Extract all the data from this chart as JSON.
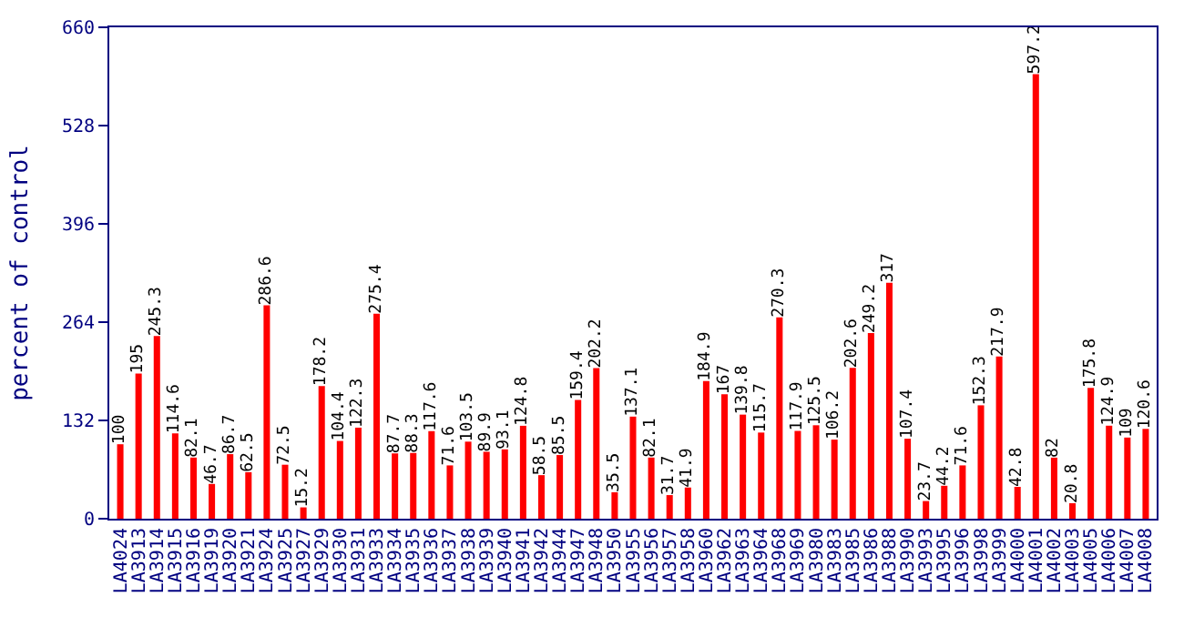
{
  "chart_data": {
    "type": "bar",
    "ylabel": "percent of control",
    "categories": [
      "LA4024",
      "LA3913",
      "LA3914",
      "LA3915",
      "LA3916",
      "LA3919",
      "LA3920",
      "LA3921",
      "LA3924",
      "LA3925",
      "LA3927",
      "LA3929",
      "LA3930",
      "LA3931",
      "LA3933",
      "LA3934",
      "LA3935",
      "LA3936",
      "LA3937",
      "LA3938",
      "LA3939",
      "LA3940",
      "LA3941",
      "LA3942",
      "LA3944",
      "LA3947",
      "LA3948",
      "LA3950",
      "LA3955",
      "LA3956",
      "LA3957",
      "LA3958",
      "LA3960",
      "LA3962",
      "LA3963",
      "LA3964",
      "LA3968",
      "LA3969",
      "LA3980",
      "LA3983",
      "LA3985",
      "LA3986",
      "LA3988",
      "LA3990",
      "LA3993",
      "LA3995",
      "LA3996",
      "LA3998",
      "LA3999",
      "LA4000",
      "LA4001",
      "LA4002",
      "LA4003",
      "LA4005",
      "LA4006",
      "LA4007",
      "LA4008"
    ],
    "values": [
      100,
      195,
      245.3,
      114.6,
      82.1,
      46.7,
      86.7,
      62.5,
      286.6,
      72.5,
      15.2,
      178.2,
      104.4,
      122.3,
      275.4,
      87.7,
      88.3,
      117.6,
      71.6,
      103.5,
      89.9,
      93.1,
      124.8,
      58.5,
      85.5,
      159.4,
      202.2,
      35.5,
      137.1,
      82.1,
      31.7,
      41.9,
      184.9,
      167,
      139.8,
      115.7,
      270.3,
      117.9,
      125.5,
      106.2,
      202.6,
      249.2,
      317,
      107.4,
      23.7,
      44.2,
      71.6,
      152.3,
      217.9,
      42.8,
      597.2,
      82,
      20.8,
      175.8,
      124.9,
      109,
      120.6
    ],
    "color": "#ff0000",
    "ylim": [
      0,
      660
    ],
    "yticks": [
      0,
      132,
      264,
      396,
      528,
      660
    ],
    "data_labels": true
  }
}
